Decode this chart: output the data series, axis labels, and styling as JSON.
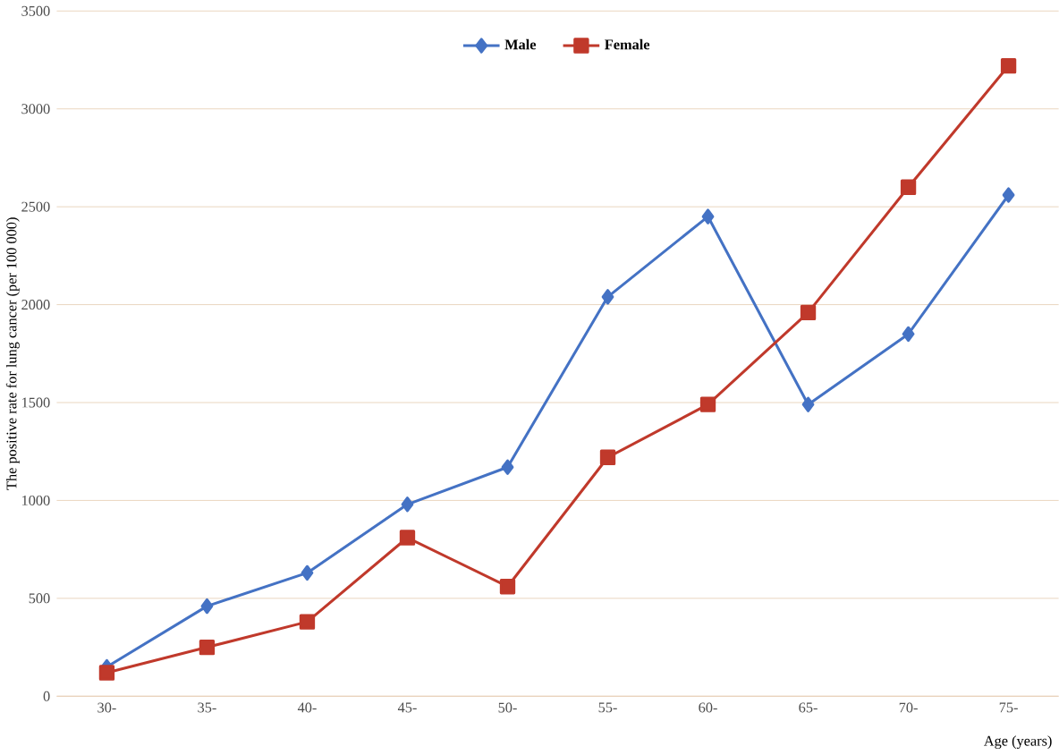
{
  "chart_data": {
    "type": "line",
    "xlabel": "Age (years)",
    "ylabel": "The positive rate for lung cancer (per 100 000)",
    "categories": [
      "30-",
      "35-",
      "40-",
      "45-",
      "50-",
      "55-",
      "60-",
      "65-",
      "70-",
      "75-"
    ],
    "series": [
      {
        "name": "Male",
        "color": "#4472c4",
        "marker": "diamond",
        "values": [
          150,
          460,
          630,
          980,
          1170,
          2040,
          2450,
          1490,
          1850,
          2560
        ]
      },
      {
        "name": "Female",
        "color": "#c0392b",
        "marker": "square",
        "values": [
          120,
          250,
          380,
          810,
          560,
          1220,
          1490,
          1960,
          2600,
          3220
        ]
      }
    ],
    "ylim": [
      0,
      3500
    ],
    "yticks": [
      0,
      500,
      1000,
      1500,
      2000,
      2500,
      3000,
      3500
    ],
    "grid": "y",
    "legend": "top",
    "line_style": "solid"
  }
}
